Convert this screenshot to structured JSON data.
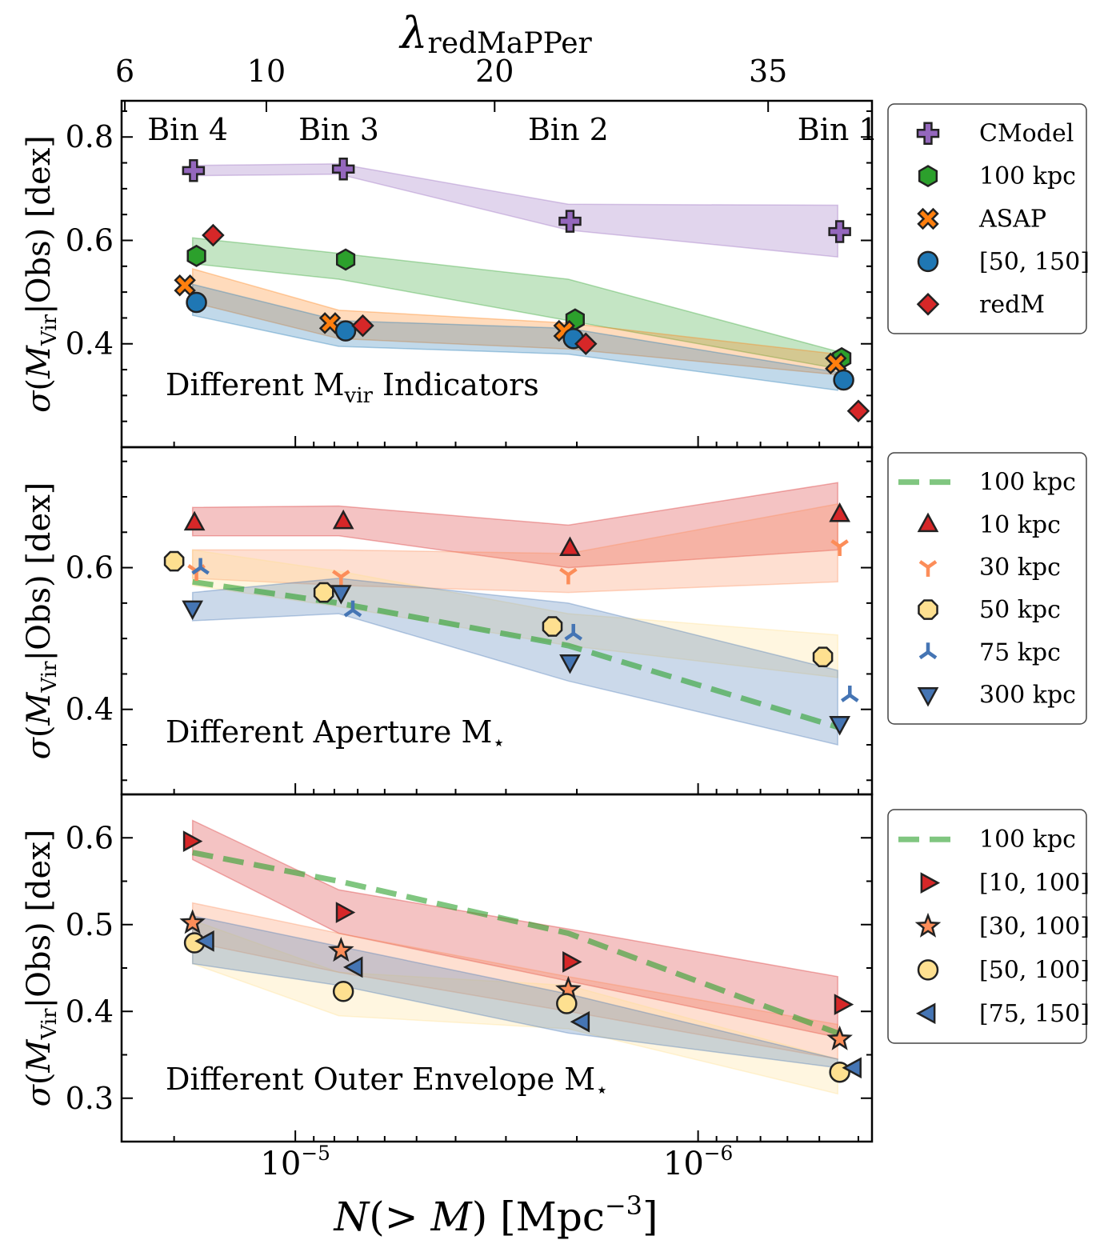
{
  "chart_data": {
    "type": "scatter",
    "x_axis": {
      "label": "N(> M) [Mpc^-3]",
      "label_main": "N(> M) [Mpc",
      "label_sup": "−3",
      "label_close": "]",
      "scale": "log",
      "reversed": true,
      "lim": [
        2.7e-05,
        3.7e-07
      ],
      "tick_labels": [
        {
          "value": 1e-05,
          "base": "10",
          "exp": "−5"
        },
        {
          "value": 1e-06,
          "base": "10",
          "exp": "−6"
        }
      ]
    },
    "top_axis": {
      "label": "λredMaPPer",
      "symbol": "λ",
      "subscript": "redMaPPer",
      "ticks": [
        {
          "label": "6",
          "n": 2.65e-05
        },
        {
          "label": "10",
          "n": 1.18e-05
        },
        {
          "label": "20",
          "n": 3.2e-06
        },
        {
          "label": "35",
          "n": 6.7e-07
        }
      ]
    },
    "bin_labels": [
      {
        "label": "Bin 4",
        "n": 1.85e-05
      },
      {
        "label": "Bin 3",
        "n": 7.8e-06
      },
      {
        "label": "Bin 2",
        "n": 2.1e-06
      },
      {
        "label": "Bin 1",
        "n": 4.5e-07
      }
    ],
    "panels": [
      {
        "name": "Different Mvir Indicators",
        "annotation_main": "Different M",
        "annotation_sub": "vir",
        "annotation_after": " Indicators",
        "ylabel": "σ(M_Vir|Obs) [dex]",
        "ylim": [
          0.2,
          0.87
        ],
        "yticks": [
          0.4,
          0.6,
          0.8
        ],
        "legend_position": "right",
        "bands": [
          {
            "color": "#9467bd",
            "x": [
              1.8e-05,
              7.8e-06,
              2.1e-06,
              4.5e-07
            ],
            "lo": [
              0.725,
              0.728,
              0.62,
              0.568
            ],
            "hi": [
              0.745,
              0.748,
              0.67,
              0.668
            ]
          },
          {
            "color": "#2ca02c",
            "x": [
              1.8e-05,
              7.8e-06,
              2.1e-06,
              4.5e-07
            ],
            "lo": [
              0.555,
              0.525,
              0.445,
              0.352
            ],
            "hi": [
              0.605,
              0.575,
              0.525,
              0.385
            ]
          },
          {
            "color": "#ff7f0e",
            "x": [
              1.8e-05,
              7.8e-06,
              2.1e-06,
              4.5e-07
            ],
            "lo": [
              0.48,
              0.41,
              0.39,
              0.34
            ],
            "hi": [
              0.545,
              0.465,
              0.44,
              0.38
            ]
          },
          {
            "color": "#1f77b4",
            "x": [
              1.8e-05,
              7.8e-06,
              2.1e-06,
              4.5e-07
            ],
            "lo": [
              0.455,
              0.395,
              0.38,
              0.31
            ],
            "hi": [
              0.515,
              0.445,
              0.43,
              0.345
            ]
          }
        ],
        "series": [
          {
            "name": "CModel",
            "marker": "plus",
            "color": "#9467bd",
            "x": [
              1.79e-05,
              7.6e-06,
              2.08e-06,
              4.45e-07
            ],
            "y": [
              0.735,
              0.738,
              0.637,
              0.617
            ]
          },
          {
            "name": "100 kpc",
            "marker": "hexagon",
            "color": "#2ca02c",
            "x": [
              1.76e-05,
              7.5e-06,
              2.02e-06,
              4.4e-07
            ],
            "y": [
              0.57,
              0.563,
              0.447,
              0.372
            ]
          },
          {
            "name": "ASAP",
            "marker": "x",
            "color": "#ff7f0e",
            "x": [
              1.88e-05,
              8.2e-06,
              2.15e-06,
              4.55e-07
            ],
            "y": [
              0.513,
              0.44,
              0.425,
              0.362
            ]
          },
          {
            "name": "[50, 150]",
            "marker": "circle",
            "color": "#1f77b4",
            "x": [
              1.76e-05,
              7.5e-06,
              2.04e-06,
              4.35e-07
            ],
            "y": [
              0.48,
              0.425,
              0.41,
              0.33
            ]
          },
          {
            "name": "redM",
            "marker": "diamond",
            "color": "#d62728",
            "x": [
              1.6e-05,
              6.8e-06,
              1.9e-06,
              4e-07
            ],
            "y": [
              0.61,
              0.435,
              0.4,
              0.27
            ]
          }
        ]
      },
      {
        "name": "Different Aperture M*",
        "annotation_main": "Different Aperture M",
        "annotation_sub": "⋆",
        "annotation_after": "",
        "ylabel": "σ(M_Vir|Obs) [dex]",
        "ylim": [
          0.28,
          0.77
        ],
        "yticks": [
          0.4,
          0.6
        ],
        "legend_position": "right",
        "bands": [
          {
            "color": "#d62728",
            "x": [
              1.8e-05,
              7.8e-06,
              2.1e-06,
              4.5e-07
            ],
            "lo": [
              0.645,
              0.645,
              0.6,
              0.625
            ],
            "hi": [
              0.685,
              0.687,
              0.66,
              0.72
            ]
          },
          {
            "color": "#fc8d59",
            "x": [
              1.8e-05,
              7.8e-06,
              2.1e-06,
              4.5e-07
            ],
            "lo": [
              0.585,
              0.575,
              0.565,
              0.58
            ],
            "hi": [
              0.625,
              0.625,
              0.62,
              0.69
            ]
          },
          {
            "color": "#fee090",
            "x": [
              1.8e-05,
              7.8e-06,
              2.1e-06,
              4.5e-07
            ],
            "lo": [
              0.575,
              0.545,
              0.49,
              0.445
            ],
            "hi": [
              0.625,
              0.595,
              0.535,
              0.505
            ]
          },
          {
            "color": "#4575b4",
            "x": [
              1.8e-05,
              7.8e-06,
              2.1e-06,
              4.5e-07
            ],
            "lo": [
              0.525,
              0.535,
              0.44,
              0.35
            ],
            "hi": [
              0.565,
              0.585,
              0.55,
              0.455
            ]
          }
        ],
        "lines": [
          {
            "name": "100 kpc",
            "color": "#2ca02c",
            "x": [
              1.8e-05,
              7.8e-06,
              2.1e-06,
              4.5e-07
            ],
            "y": [
              0.58,
              0.55,
              0.49,
              0.375
            ]
          }
        ],
        "series": [
          {
            "name": "10 kpc",
            "marker": "triangle-up",
            "color": "#d62728",
            "x": [
              1.78e-05,
              7.6e-06,
              2.08e-06,
              4.45e-07
            ],
            "y": [
              0.663,
              0.665,
              0.627,
              0.675
            ]
          },
          {
            "name": "30 kpc",
            "marker": "tri-down",
            "color": "#fc8d59",
            "x": [
              1.76e-05,
              7.7e-06,
              2.1e-06,
              4.45e-07
            ],
            "y": [
              0.595,
              0.587,
              0.59,
              0.63
            ]
          },
          {
            "name": "50 kpc",
            "marker": "octagon",
            "color": "#fee090",
            "x": [
              2e-05,
              8.5e-06,
              2.3e-06,
              4.9e-07
            ],
            "y": [
              0.609,
              0.565,
              0.517,
              0.474
            ]
          },
          {
            "name": "75 kpc",
            "marker": "tri-up",
            "color": "#4575b4",
            "x": [
              1.72e-05,
              7.2e-06,
              2.04e-06,
              4.2e-07
            ],
            "y": [
              0.6,
              0.54,
              0.507,
              0.42
            ]
          },
          {
            "name": "300 kpc",
            "marker": "triangle-down",
            "color": "#4575b4",
            "x": [
              1.8e-05,
              7.7e-06,
              2.08e-06,
              4.45e-07
            ],
            "y": [
              0.543,
              0.565,
              0.467,
              0.38
            ]
          }
        ]
      },
      {
        "name": "Different Outer Envelope M*",
        "annotation_main": "Different Outer Envelope M",
        "annotation_sub": "⋆",
        "annotation_after": "",
        "ylabel": "σ(M_Vir|Obs) [dex]",
        "ylim": [
          0.25,
          0.65
        ],
        "yticks": [
          0.3,
          0.4,
          0.5,
          0.6
        ],
        "legend_position": "right",
        "bands": [
          {
            "color": "#d62728",
            "x": [
              1.8e-05,
              7.8e-06,
              2.1e-06,
              4.5e-07
            ],
            "lo": [
              0.575,
              0.49,
              0.435,
              0.37
            ],
            "hi": [
              0.62,
              0.54,
              0.495,
              0.44
            ]
          },
          {
            "color": "#fc8d59",
            "x": [
              1.8e-05,
              7.8e-06,
              2.1e-06,
              4.5e-07
            ],
            "lo": [
              0.48,
              0.445,
              0.4,
              0.345
            ],
            "hi": [
              0.525,
              0.49,
              0.44,
              0.385
            ]
          },
          {
            "color": "#fee090",
            "x": [
              1.8e-05,
              7.8e-06,
              2.1e-06,
              4.5e-07
            ],
            "lo": [
              0.455,
              0.395,
              0.38,
              0.305
            ],
            "hi": [
              0.505,
              0.445,
              0.43,
              0.345
            ]
          },
          {
            "color": "#4575b4",
            "x": [
              1.8e-05,
              7.8e-06,
              2.1e-06,
              4.5e-07
            ],
            "lo": [
              0.455,
              0.43,
              0.375,
              0.335
            ],
            "hi": [
              0.51,
              0.475,
              0.42,
              0.345
            ]
          }
        ],
        "lines": [
          {
            "name": "100 kpc",
            "color": "#2ca02c",
            "x": [
              1.8e-05,
              7.8e-06,
              2.1e-06,
              4.5e-07
            ],
            "y": [
              0.583,
              0.55,
              0.49,
              0.375
            ]
          }
        ],
        "series": [
          {
            "name": "[10, 100]",
            "marker": "triangle-right",
            "color": "#d62728",
            "x": [
              1.82e-05,
              7.6e-06,
              2.08e-06,
              4.4e-07
            ],
            "y": [
              0.596,
              0.514,
              0.457,
              0.408
            ]
          },
          {
            "name": "[30, 100]",
            "marker": "star",
            "color": "#fc8d59",
            "x": [
              1.8e-05,
              7.7e-06,
              2.1e-06,
              4.45e-07
            ],
            "y": [
              0.502,
              0.47,
              0.425,
              0.368
            ]
          },
          {
            "name": "[50, 100]",
            "marker": "circle",
            "color": "#fee090",
            "x": [
              1.78e-05,
              7.6e-06,
              2.12e-06,
              4.45e-07
            ],
            "y": [
              0.479,
              0.423,
              0.409,
              0.33
            ]
          },
          {
            "name": "[75, 150]",
            "marker": "triangle-left",
            "color": "#4575b4",
            "x": [
              1.66e-05,
              7.1e-06,
              1.94e-06,
              4.1e-07
            ],
            "y": [
              0.481,
              0.451,
              0.388,
              0.335
            ]
          }
        ]
      }
    ]
  }
}
